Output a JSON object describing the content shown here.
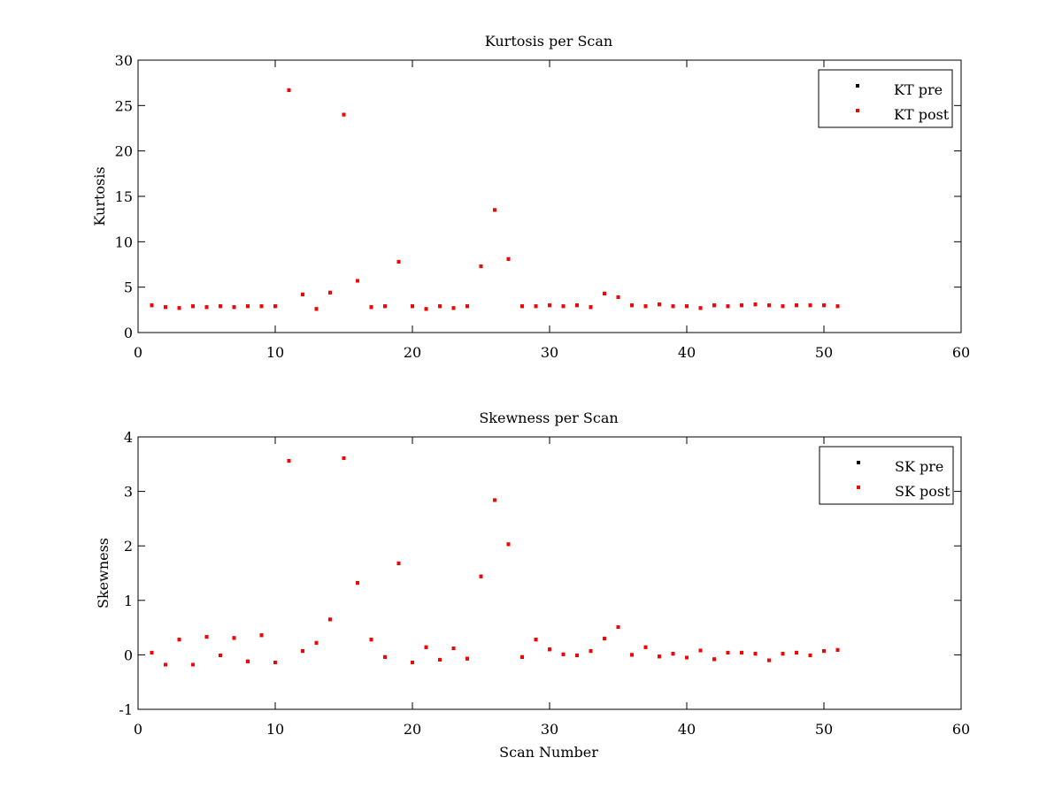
{
  "chart_data": [
    {
      "type": "scatter",
      "title": "Kurtosis per Scan",
      "xlabel": "",
      "ylabel": "Kurtosis",
      "xlim": [
        0,
        60
      ],
      "ylim": [
        0,
        30
      ],
      "xticks": [
        0,
        10,
        20,
        30,
        40,
        50,
        60
      ],
      "yticks": [
        0,
        5,
        10,
        15,
        20,
        25,
        30
      ],
      "grid": false,
      "legend_position": "top-right",
      "series": [
        {
          "name": "KT pre",
          "color": "#000000",
          "x": [
            1,
            2,
            3,
            4,
            5,
            6,
            7,
            8,
            9,
            10,
            11,
            12,
            13,
            14,
            15,
            16,
            17,
            18,
            19,
            20,
            21,
            22,
            23,
            24,
            25,
            26,
            27,
            28,
            29,
            30,
            31,
            32,
            33,
            34,
            35,
            36,
            37,
            38,
            39,
            40,
            41,
            42,
            43,
            44,
            45,
            46,
            47,
            48,
            49,
            50,
            51
          ],
          "y": [
            3.0,
            2.8,
            2.7,
            2.9,
            2.8,
            2.9,
            2.8,
            2.9,
            2.9,
            2.9,
            26.7,
            4.2,
            2.6,
            4.4,
            24.0,
            5.7,
            2.8,
            2.9,
            7.8,
            2.9,
            2.6,
            2.9,
            2.7,
            2.9,
            7.3,
            13.5,
            8.1,
            2.9,
            2.9,
            3.0,
            2.9,
            3.0,
            2.8,
            4.3,
            3.9,
            3.0,
            2.9,
            3.1,
            2.9,
            2.9,
            2.7,
            3.0,
            2.9,
            3.0,
            3.1,
            3.0,
            2.9,
            3.0,
            3.0,
            3.0,
            2.9
          ]
        },
        {
          "name": "KT post",
          "color": "#ff0000",
          "x": [
            1,
            2,
            3,
            4,
            5,
            6,
            7,
            8,
            9,
            10,
            11,
            12,
            13,
            14,
            15,
            16,
            17,
            18,
            19,
            20,
            21,
            22,
            23,
            24,
            25,
            26,
            27,
            28,
            29,
            30,
            31,
            32,
            33,
            34,
            35,
            36,
            37,
            38,
            39,
            40,
            41,
            42,
            43,
            44,
            45,
            46,
            47,
            48,
            49,
            50,
            51
          ],
          "y": [
            3.0,
            2.8,
            2.7,
            2.9,
            2.8,
            2.9,
            2.8,
            2.9,
            2.9,
            2.9,
            26.7,
            4.2,
            2.6,
            4.4,
            24.0,
            5.7,
            2.8,
            2.9,
            7.8,
            2.9,
            2.6,
            2.9,
            2.7,
            2.9,
            7.3,
            13.5,
            8.1,
            2.9,
            2.9,
            3.0,
            2.9,
            3.0,
            2.8,
            4.3,
            3.9,
            3.0,
            2.9,
            3.1,
            2.9,
            2.9,
            2.7,
            3.0,
            2.9,
            3.0,
            3.1,
            3.0,
            2.9,
            3.0,
            3.0,
            3.0,
            2.9
          ]
        }
      ]
    },
    {
      "type": "scatter",
      "title": "Skewness per Scan",
      "xlabel": "Scan Number",
      "ylabel": "Skewness",
      "xlim": [
        0,
        60
      ],
      "ylim": [
        -1,
        4
      ],
      "xticks": [
        0,
        10,
        20,
        30,
        40,
        50,
        60
      ],
      "yticks": [
        -1,
        0,
        1,
        2,
        3,
        4
      ],
      "grid": false,
      "legend_position": "top-right",
      "series": [
        {
          "name": "SK pre",
          "color": "#000000",
          "x": [
            1,
            2,
            3,
            4,
            5,
            6,
            7,
            8,
            9,
            10,
            11,
            12,
            13,
            14,
            15,
            16,
            17,
            18,
            19,
            20,
            21,
            22,
            23,
            24,
            25,
            26,
            27,
            28,
            29,
            30,
            31,
            32,
            33,
            34,
            35,
            36,
            37,
            38,
            39,
            40,
            41,
            42,
            43,
            44,
            45,
            46,
            47,
            48,
            49,
            50,
            51
          ],
          "y": [
            0.04,
            -0.18,
            0.28,
            -0.18,
            0.33,
            -0.01,
            0.31,
            -0.12,
            0.36,
            -0.14,
            3.56,
            0.07,
            0.22,
            0.65,
            3.61,
            1.32,
            0.28,
            -0.04,
            1.68,
            -0.14,
            0.14,
            -0.09,
            0.12,
            -0.07,
            1.44,
            2.84,
            2.03,
            -0.04,
            0.28,
            0.1,
            0.01,
            -0.01,
            0.07,
            0.3,
            0.51,
            0.0,
            0.14,
            -0.03,
            0.02,
            -0.05,
            0.08,
            -0.08,
            0.04,
            0.04,
            0.02,
            -0.1,
            0.02,
            0.04,
            -0.01,
            0.07,
            0.09
          ]
        },
        {
          "name": "SK post",
          "color": "#ff0000",
          "x": [
            1,
            2,
            3,
            4,
            5,
            6,
            7,
            8,
            9,
            10,
            11,
            12,
            13,
            14,
            15,
            16,
            17,
            18,
            19,
            20,
            21,
            22,
            23,
            24,
            25,
            26,
            27,
            28,
            29,
            30,
            31,
            32,
            33,
            34,
            35,
            36,
            37,
            38,
            39,
            40,
            41,
            42,
            43,
            44,
            45,
            46,
            47,
            48,
            49,
            50,
            51
          ],
          "y": [
            0.04,
            -0.18,
            0.28,
            -0.18,
            0.33,
            -0.01,
            0.31,
            -0.12,
            0.36,
            -0.14,
            3.56,
            0.07,
            0.22,
            0.65,
            3.61,
            1.32,
            0.28,
            -0.04,
            1.68,
            -0.14,
            0.14,
            -0.09,
            0.12,
            -0.07,
            1.44,
            2.84,
            2.03,
            -0.04,
            0.28,
            0.1,
            0.01,
            -0.01,
            0.07,
            0.3,
            0.51,
            0.0,
            0.14,
            -0.03,
            0.02,
            -0.05,
            0.08,
            -0.08,
            0.04,
            0.04,
            0.02,
            -0.1,
            0.02,
            0.04,
            -0.01,
            0.07,
            0.09
          ]
        }
      ]
    }
  ]
}
